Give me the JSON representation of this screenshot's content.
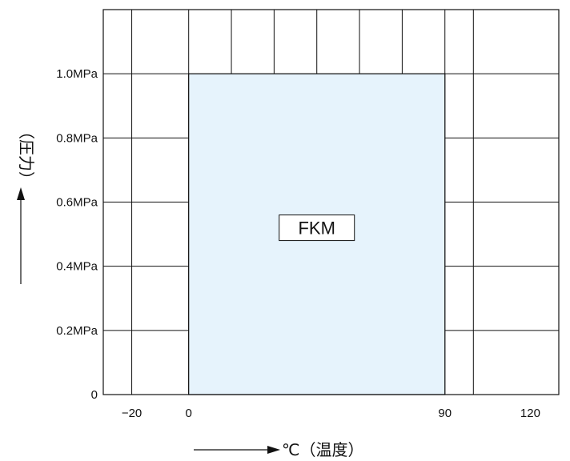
{
  "chart_data": {
    "type": "area",
    "x_range": [
      -30,
      130
    ],
    "y_range": [
      0,
      1.2
    ],
    "x_gridlines": [
      -20,
      0,
      15,
      30,
      45,
      60,
      75,
      90,
      100
    ],
    "y_gridlines": [
      0.2,
      0.4,
      0.6,
      0.8,
      1.0
    ],
    "x_ticks": [
      {
        "value": -20,
        "label": "−20"
      },
      {
        "value": 0,
        "label": "0"
      },
      {
        "value": 90,
        "label": "90"
      },
      {
        "value": 120,
        "label": "120"
      }
    ],
    "y_ticks": [
      {
        "value": 0,
        "label": "0"
      },
      {
        "value": 0.2,
        "label": "0.2MPa"
      },
      {
        "value": 0.4,
        "label": "0.4MPa"
      },
      {
        "value": 0.6,
        "label": "0.6MPa"
      },
      {
        "value": 0.8,
        "label": "0.8MPa"
      },
      {
        "value": 1.0,
        "label": "1.0MPa"
      }
    ],
    "xlabel": "℃（温度）",
    "ylabel": "（圧力）",
    "region": {
      "label": "FKM",
      "x_min": 0,
      "x_max": 90,
      "y_min": 0,
      "y_max": 1.0,
      "fill_color": "#e6f3fc"
    },
    "grid": true
  }
}
